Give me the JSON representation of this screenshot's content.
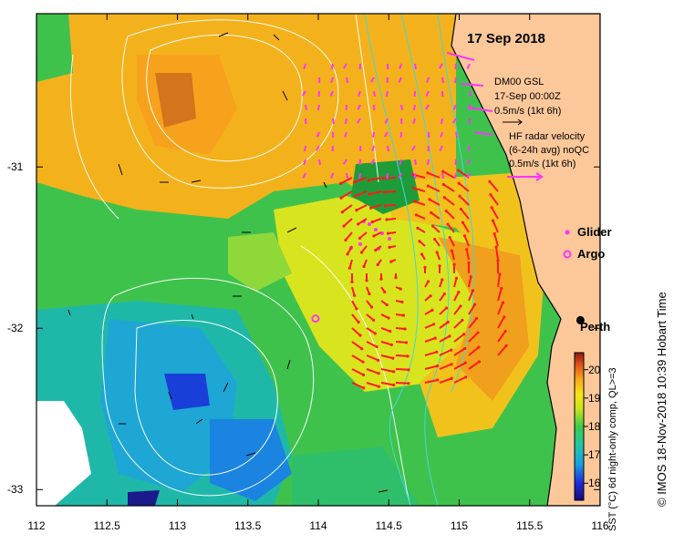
{
  "map": {
    "date_title": "17 Sep 2018",
    "dm_label": [
      "DM00 GSL",
      "17-Sep 00:00Z",
      "0.5m/s (1kt 6h)"
    ],
    "hf_label": [
      "HF radar velocity",
      "(6-24h avg) noQC",
      "0.5m/s (1kt 6h)"
    ],
    "legend_glider": "Glider",
    "legend_argo": "Argo",
    "city": "Perth",
    "colorbar_title": "SST (°C) 6d night-only comp, QL>=3",
    "colorbar_ticks": [
      "16",
      "17",
      "18",
      "19",
      "20"
    ],
    "colorbar_range": [
      15.4,
      20.6
    ],
    "credit": "© IMOS 18-Nov-2018 10:39 Hobart Time",
    "x_ticks": [
      "112",
      "112.5",
      "113",
      "113.5",
      "114",
      "114.5",
      "115",
      "115.5",
      "116"
    ],
    "y_ticks": [
      "-31",
      "-32",
      "-33"
    ],
    "lon_range": [
      112,
      116
    ],
    "lat_range": [
      -33.1,
      -30.05
    ],
    "perth_lonlat": [
      115.86,
      -31.95
    ],
    "argo_lonlat": [
      113.98,
      -31.94
    ],
    "colors": {
      "land": "#fcc89a",
      "hf_arrow": "#ff1a1a",
      "glider": "#ff33ff",
      "frame": "#000000",
      "contour": "#ffffff"
    }
  }
}
